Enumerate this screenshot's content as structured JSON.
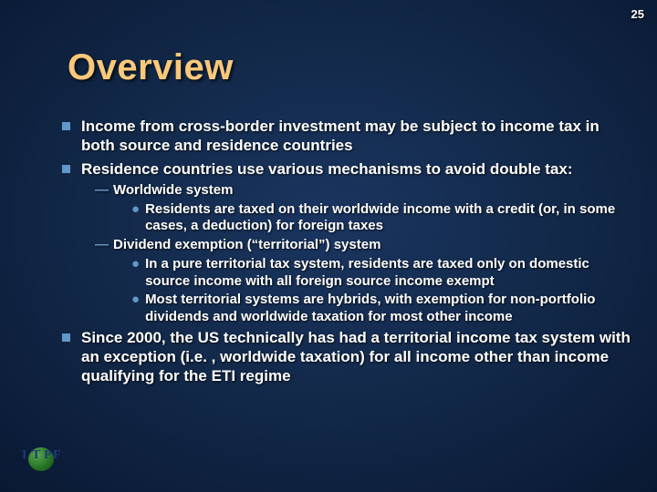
{
  "page_number": "25",
  "title": "Overview",
  "colors": {
    "title": "#f9c97a",
    "bullet": "#6298c9",
    "text": "#ffffff",
    "bg_inner": "#1a3560",
    "bg_outer": "#000814"
  },
  "bullets": [
    {
      "text": "Income from cross-border investment may be subject to income tax in both source and residence countries"
    },
    {
      "text": "Residence countries use various mechanisms to avoid double tax:",
      "sub": [
        {
          "text": "Worldwide system",
          "sub": [
            {
              "text": "Residents are taxed on their worldwide income with a credit (or, in some cases, a deduction) for foreign taxes"
            }
          ]
        },
        {
          "text": "Dividend exemption (“territorial”) system",
          "sub": [
            {
              "text": "In a pure territorial tax system, residents are taxed only on domestic source income with all foreign source income exempt"
            },
            {
              "text": "Most territorial systems are hybrids, with exemption for non-portfolio dividends and worldwide taxation for most other income"
            }
          ]
        }
      ]
    },
    {
      "text": "Since 2000, the US technically has had a territorial income tax system with an exception (i.e. , worldwide taxation) for all income other than income qualifying for the ETI regime"
    }
  ],
  "logo": {
    "letters": [
      "I",
      "T",
      "P",
      "F"
    ]
  }
}
